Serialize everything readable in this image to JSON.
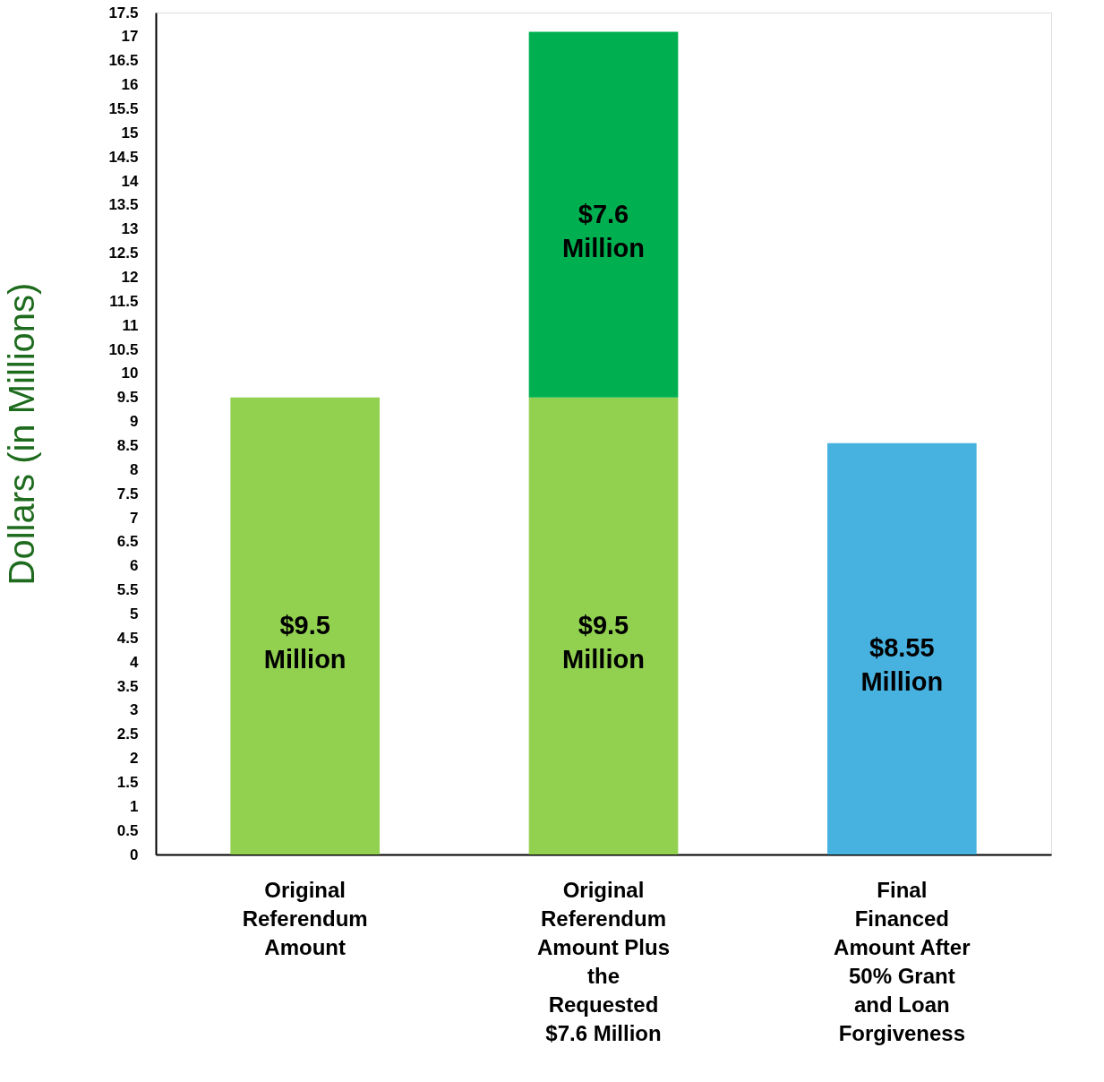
{
  "chart_data": {
    "type": "bar",
    "stacked": true,
    "ylabel": "Dollars (in Millions)",
    "categories": [
      "Original Referendum Amount",
      "Original Referendum Amount Plus the Requested $7.6 Million",
      "Final Financed Amount After 50% Grant and Loan Forgiveness"
    ],
    "series": [
      {
        "color": "#92d050",
        "values": [
          9.5,
          9.5,
          null
        ],
        "value_labels": [
          "$9.5 Million",
          "$9.5 Million",
          null
        ]
      },
      {
        "color": "#00b050",
        "values": [
          null,
          7.6,
          null
        ],
        "value_labels": [
          null,
          "$7.6 Million",
          null
        ]
      },
      {
        "color": "#47b2e0",
        "values": [
          null,
          null,
          8.55
        ],
        "value_labels": [
          null,
          null,
          "$8.55 Million"
        ]
      }
    ],
    "ylim": [
      0,
      17.5
    ],
    "yticks": [
      0,
      0.5,
      1,
      1.5,
      2,
      2.5,
      3,
      3.5,
      4,
      4.5,
      5,
      5.5,
      6,
      6.5,
      7,
      7.5,
      8,
      8.5,
      9,
      9.5,
      10,
      10.5,
      11,
      11.5,
      12,
      12.5,
      13,
      13.5,
      14,
      14.5,
      15,
      15.5,
      16,
      16.5,
      17,
      17.5
    ],
    "grid": false
  }
}
